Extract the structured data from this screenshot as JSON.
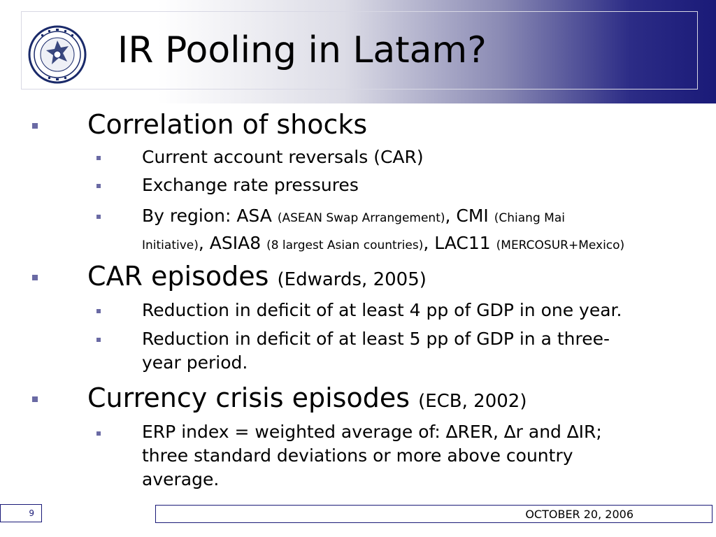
{
  "slide": {
    "title": "IR Pooling in Latam?",
    "logo_lettering": "BANCO CENTRAL DE CHILE",
    "bullets": {
      "b1": {
        "text": "Correlation of shocks",
        "s1": "Current account reversals (CAR)",
        "s2": "Exchange rate pressures",
        "s3": {
          "pre": "By region: ASA ",
          "asa_note": "(ASEAN Swap Arrangement)",
          "cmi": ", CMI ",
          "cmi_note_a": "(Chiang Mai",
          "cmi_note_b": "Initiative)",
          "asia8": ", ASIA8 ",
          "asia8_note": "(8 largest Asian countries)",
          "lac11": ", LAC11 ",
          "lac11_note": "(MERCOSUR+Mexico)"
        }
      },
      "b2": {
        "text": "CAR episodes ",
        "cite": "(Edwards, 2005)",
        "s1": "Reduction in deficit of at least 4 pp of GDP in one year.",
        "s2a": "Reduction in deficit of at least 5 pp of GDP in a three-",
        "s2b": "year period."
      },
      "b3": {
        "text": "Currency crisis episodes ",
        "cite": "(ECB, 2002)",
        "s1a": "ERP index = weighted average of: ∆RER, ∆r and ∆IR;",
        "s1b": "three standard deviations or more above country",
        "s1c": "average."
      }
    }
  },
  "footer": {
    "page_number": "9",
    "date": "OCTOBER 20, 2006"
  },
  "colors": {
    "header_dark": "#1a1a78",
    "bullet": "#6a6aa4"
  }
}
